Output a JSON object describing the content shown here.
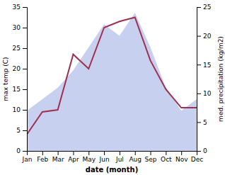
{
  "chart_data": {
    "type": "line",
    "categories": [
      "Jan",
      "Feb",
      "Mar",
      "Apr",
      "May",
      "Jun",
      "Jul",
      "Aug",
      "Sep",
      "Oct",
      "Nov",
      "Dec"
    ],
    "xlabel": "date (month)",
    "ylabel": "max temp (C)",
    "y2label": "med. precipitation (kg/m2)",
    "ylim": [
      0,
      35
    ],
    "yticks": [
      0,
      5,
      10,
      15,
      20,
      25,
      30,
      35
    ],
    "y2lim": [
      0,
      25
    ],
    "y2ticks": [
      0,
      5,
      10,
      15,
      20,
      25
    ],
    "grid": false,
    "series": [
      {
        "type": "area",
        "axis": "y2",
        "color": "#c8d0f0",
        "values": [
          7,
          9,
          11,
          14,
          18,
          22,
          20,
          24,
          18,
          11,
          7,
          9
        ]
      },
      {
        "type": "line",
        "color": "#a03050",
        "values": [
          4,
          9.5,
          10,
          23.5,
          20,
          30,
          31.5,
          32.5,
          22,
          15,
          10.5,
          10.5
        ]
      }
    ]
  }
}
